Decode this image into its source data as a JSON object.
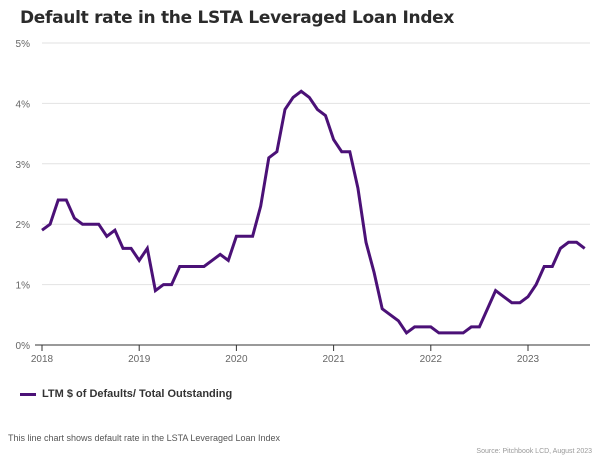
{
  "title": "Default rate in the LSTA Leveraged Loan Index",
  "caption": "This line chart shows default rate in the LSTA Leveraged Loan Index",
  "source": "Source: Pitchbook LCD, August 2023",
  "chart_data": {
    "type": "line",
    "title": "Default rate in the LSTA Leveraged Loan Index",
    "xlabel": "",
    "ylabel": "",
    "ylim": [
      0,
      5
    ],
    "yticks": [
      "0%",
      "1%",
      "2%",
      "3%",
      "4%",
      "5%"
    ],
    "xticks": [
      "2018",
      "2019",
      "2020",
      "2021",
      "2022",
      "2023"
    ],
    "grid": true,
    "legend_position": "bottom-left",
    "color": "#4b1177",
    "series": [
      {
        "name": "LTM $ of Defaults/ Total Outstanding",
        "start": "2018-01",
        "frequency": "monthly",
        "values": [
          1.9,
          2.0,
          2.4,
          2.4,
          2.1,
          2.0,
          2.0,
          2.0,
          1.8,
          1.9,
          1.6,
          1.6,
          1.4,
          1.6,
          0.9,
          1.0,
          1.0,
          1.3,
          1.3,
          1.3,
          1.3,
          1.4,
          1.5,
          1.4,
          1.8,
          1.8,
          1.8,
          2.3,
          3.1,
          3.2,
          3.9,
          4.1,
          4.2,
          4.1,
          3.9,
          3.8,
          3.4,
          3.2,
          3.2,
          2.6,
          1.7,
          1.2,
          0.6,
          0.5,
          0.4,
          0.2,
          0.3,
          0.3,
          0.3,
          0.2,
          0.2,
          0.2,
          0.2,
          0.3,
          0.3,
          0.6,
          0.9,
          0.8,
          0.7,
          0.7,
          0.8,
          1.0,
          1.3,
          1.3,
          1.6,
          1.7,
          1.7,
          1.6
        ]
      }
    ]
  }
}
